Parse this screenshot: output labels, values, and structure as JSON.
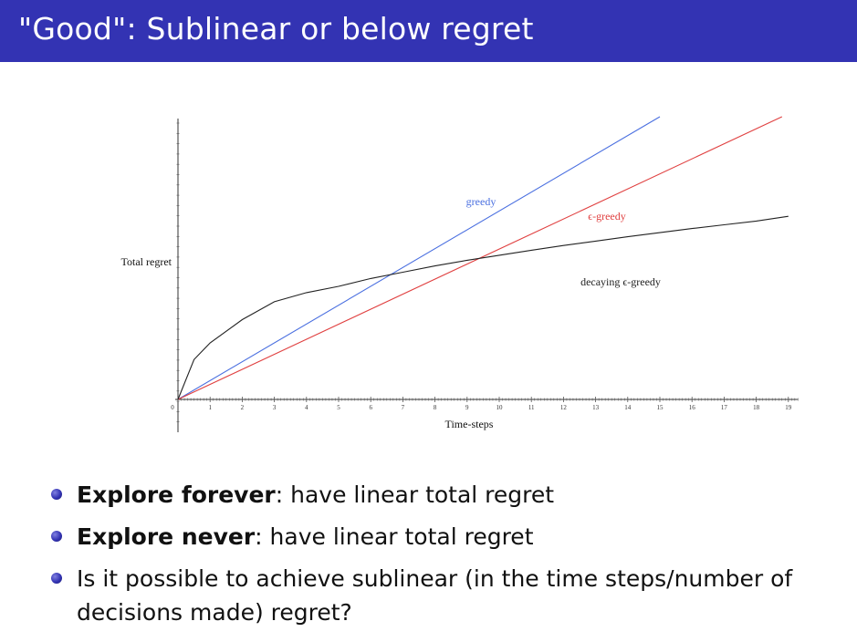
{
  "slide": {
    "title": "\"Good\": Sublinear or below regret"
  },
  "chart_data": {
    "type": "line",
    "xlabel": "Time-steps",
    "ylabel": "Total regret",
    "x_ticks": [
      "0",
      "1",
      "2",
      "3",
      "4",
      "5",
      "6",
      "7",
      "8",
      "9",
      "10",
      "11",
      "12",
      "13",
      "14",
      "15",
      "16",
      "17",
      "18",
      "19"
    ],
    "xlim": [
      0,
      19.3
    ],
    "ylim": [
      0,
      9
    ],
    "series": [
      {
        "name": "greedy",
        "color": "#4a6fe0",
        "x": [
          0,
          15
        ],
        "y": [
          0,
          9
        ]
      },
      {
        "name": "ϵ-greedy",
        "color": "#e04040",
        "x": [
          0,
          18.8
        ],
        "y": [
          0,
          9
        ]
      },
      {
        "name": "decaying ϵ-greedy",
        "color": "#222222",
        "x": [
          0,
          0.5,
          1,
          2,
          3,
          4,
          5,
          6,
          7,
          8,
          9,
          10,
          11,
          12,
          13,
          14,
          15,
          16,
          17,
          18,
          19
        ],
        "y": [
          0,
          1.27,
          1.8,
          2.54,
          3.11,
          3.4,
          3.6,
          3.85,
          4.05,
          4.25,
          4.43,
          4.59,
          4.75,
          4.9,
          5.04,
          5.18,
          5.31,
          5.44,
          5.56,
          5.68,
          5.83
        ]
      }
    ]
  },
  "bullets": [
    {
      "bold": "Explore forever",
      "rest": ": have linear total regret"
    },
    {
      "bold": "Explore never",
      "rest": ": have linear total regret"
    },
    {
      "bold": "",
      "rest": "Is it possible to achieve sublinear (in the time steps/number of decisions made) regret?"
    }
  ]
}
